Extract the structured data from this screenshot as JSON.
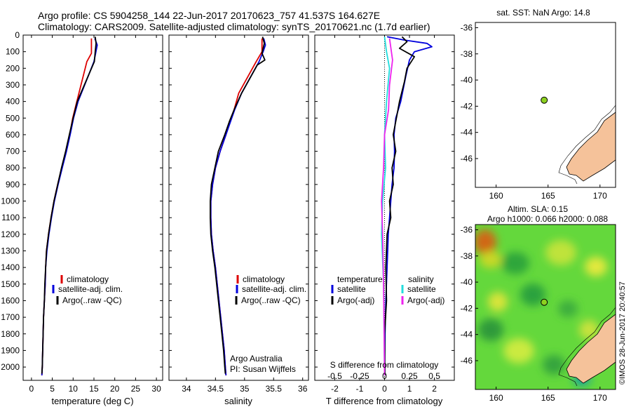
{
  "header": {
    "line1": "Argo profile: CS 5904258_144 22-Jun-2017 20170623_757 41.537S 164.627E",
    "line2": "Climatology: CARS2009. Satellite-adjusted climatology: synTS_20170621.nc (1.7d earlier)"
  },
  "credits": {
    "line1": "Argo Australia",
    "line2": "PI: Susan Wijffels",
    "watermark": "©IMOS 28-Jun-2017 20:40:57"
  },
  "colors": {
    "climatology": "#dd0000",
    "satellite": "#0000dd",
    "argo": "#000000",
    "sal_satellite": "#22dddd",
    "sal_argo": "#ee22ee",
    "land": "#f5c29a",
    "marker": "#8cd020"
  },
  "legends": {
    "temp": [
      "climatology",
      "satellite-adj. clim.",
      "Argo(..raw -QC)"
    ],
    "sal": [
      "climatology",
      "satellite-adj. clim.",
      "Argo(..raw -QC)"
    ],
    "diff_head_t": "temperature",
    "diff_head_s": "salinity",
    "diff_t": [
      "satellite",
      "Argo(-adj)"
    ],
    "diff_s": [
      "satellite",
      "Argo(-adj)"
    ]
  },
  "chart_data": [
    {
      "type": "line",
      "id": "temperature",
      "xlabel": "temperature (deg C)",
      "ylabel": "",
      "xlim": [
        -2,
        31.5
      ],
      "ylim": [
        2080,
        0
      ],
      "xticks": [
        0,
        5,
        10,
        15,
        20,
        25,
        30
      ],
      "yticks": [
        0,
        100,
        200,
        300,
        400,
        500,
        600,
        700,
        800,
        900,
        1000,
        1100,
        1200,
        1300,
        1400,
        1500,
        1600,
        1700,
        1800,
        1900,
        2000
      ],
      "series": [
        {
          "name": "climatology",
          "color": "climatology",
          "points": [
            [
              14.4,
              20
            ],
            [
              14.4,
              110
            ],
            [
              13.3,
              160
            ],
            [
              10.9,
              400
            ],
            [
              9.9,
              500
            ],
            [
              9.2,
              600
            ],
            [
              8.3,
              700
            ],
            [
              7.3,
              800
            ],
            [
              6.3,
              900
            ],
            [
              5.4,
              1000
            ],
            [
              4.7,
              1100
            ],
            [
              4.1,
              1200
            ],
            [
              3.6,
              1300
            ],
            [
              3.4,
              1400
            ],
            [
              3.3,
              1500
            ],
            [
              3.1,
              1600
            ],
            [
              2.9,
              1700
            ],
            [
              2.8,
              1800
            ],
            [
              2.7,
              1900
            ],
            [
              2.6,
              2000
            ],
            [
              2.5,
              2050
            ]
          ]
        },
        {
          "name": "satellite-adj. clim.",
          "color": "satellite",
          "points": [
            [
              15.2,
              20
            ],
            [
              15.8,
              60
            ],
            [
              15.4,
              110
            ],
            [
              15.0,
              160
            ],
            [
              11.2,
              400
            ],
            [
              10.1,
              500
            ],
            [
              9.3,
              600
            ],
            [
              8.4,
              700
            ],
            [
              7.4,
              800
            ],
            [
              6.4,
              900
            ],
            [
              5.5,
              1000
            ],
            [
              4.8,
              1100
            ],
            [
              4.2,
              1200
            ],
            [
              3.7,
              1300
            ],
            [
              3.4,
              1400
            ],
            [
              3.3,
              1500
            ],
            [
              3.1,
              1600
            ],
            [
              2.9,
              1700
            ],
            [
              2.8,
              1800
            ],
            [
              2.7,
              1900
            ],
            [
              2.6,
              2000
            ],
            [
              2.5,
              2050
            ]
          ]
        },
        {
          "name": "Argo(..raw -QC)",
          "color": "argo",
          "points": [
            [
              15.3,
              10
            ],
            [
              15.5,
              50
            ],
            [
              15.3,
              100
            ],
            [
              15.1,
              160
            ],
            [
              11.0,
              400
            ],
            [
              10.0,
              500
            ],
            [
              9.1,
              600
            ],
            [
              8.2,
              700
            ],
            [
              7.2,
              800
            ],
            [
              6.3,
              900
            ],
            [
              5.4,
              1000
            ],
            [
              4.7,
              1100
            ],
            [
              4.1,
              1200
            ],
            [
              3.6,
              1300
            ],
            [
              3.4,
              1400
            ],
            [
              3.2,
              1500
            ],
            [
              3.1,
              1600
            ],
            [
              2.9,
              1700
            ],
            [
              2.8,
              1800
            ],
            [
              2.7,
              1900
            ],
            [
              2.6,
              2000
            ],
            [
              2.5,
              2040
            ]
          ]
        }
      ]
    },
    {
      "type": "line",
      "id": "salinity",
      "xlabel": "salinity",
      "ylabel": "",
      "xlim": [
        33.7,
        36.1
      ],
      "ylim": [
        2080,
        0
      ],
      "xticks": [
        34,
        34.5,
        35,
        35.5,
        36
      ],
      "series": [
        {
          "name": "climatology",
          "color": "climatology",
          "points": [
            [
              35.3,
              20
            ],
            [
              35.3,
              100
            ],
            [
              35.2,
              160
            ],
            [
              34.9,
              350
            ],
            [
              34.82,
              450
            ],
            [
              34.75,
              520
            ],
            [
              34.68,
              600
            ],
            [
              34.58,
              700
            ],
            [
              34.5,
              800
            ],
            [
              34.45,
              900
            ],
            [
              34.42,
              1000
            ],
            [
              34.42,
              1100
            ],
            [
              34.43,
              1200
            ],
            [
              34.46,
              1300
            ],
            [
              34.5,
              1400
            ],
            [
              34.53,
              1500
            ],
            [
              34.56,
              1600
            ],
            [
              34.59,
              1700
            ],
            [
              34.62,
              1800
            ],
            [
              34.65,
              1900
            ],
            [
              34.67,
              2000
            ],
            [
              34.68,
              2050
            ]
          ]
        },
        {
          "name": "satellite-adj. clim.",
          "color": "satellite",
          "points": [
            [
              35.33,
              20
            ],
            [
              35.36,
              60
            ],
            [
              35.32,
              100
            ],
            [
              35.25,
              160
            ],
            [
              34.95,
              350
            ],
            [
              34.83,
              450
            ],
            [
              34.76,
              520
            ],
            [
              34.68,
              600
            ],
            [
              34.58,
              700
            ],
            [
              34.5,
              800
            ],
            [
              34.45,
              900
            ],
            [
              34.42,
              1000
            ],
            [
              34.42,
              1100
            ],
            [
              34.43,
              1200
            ],
            [
              34.46,
              1300
            ],
            [
              34.5,
              1400
            ],
            [
              34.53,
              1500
            ],
            [
              34.56,
              1600
            ],
            [
              34.59,
              1700
            ],
            [
              34.62,
              1800
            ],
            [
              34.65,
              1900
            ],
            [
              34.67,
              2000
            ],
            [
              34.68,
              2050
            ]
          ]
        },
        {
          "name": "Argo(..raw -QC)",
          "color": "argo",
          "points": [
            [
              35.31,
              10
            ],
            [
              35.34,
              50
            ],
            [
              35.3,
              110
            ],
            [
              35.35,
              150
            ],
            [
              35.22,
              180
            ],
            [
              34.95,
              350
            ],
            [
              34.82,
              450
            ],
            [
              34.74,
              520
            ],
            [
              34.66,
              600
            ],
            [
              34.55,
              700
            ],
            [
              34.49,
              800
            ],
            [
              34.43,
              900
            ],
            [
              34.41,
              1000
            ],
            [
              34.41,
              1100
            ],
            [
              34.42,
              1200
            ],
            [
              34.45,
              1300
            ],
            [
              34.49,
              1400
            ],
            [
              34.52,
              1500
            ],
            [
              34.55,
              1600
            ],
            [
              34.58,
              1700
            ],
            [
              34.61,
              1800
            ],
            [
              34.64,
              1900
            ],
            [
              34.66,
              2000
            ],
            [
              34.67,
              2040
            ]
          ]
        }
      ]
    },
    {
      "type": "line",
      "id": "difference",
      "xlabel": "T difference from climatology",
      "x2label": "S difference from climatology",
      "xlim": [
        -2.8,
        2.8
      ],
      "ylim": [
        2080,
        0
      ],
      "xticks": [
        -2,
        -1,
        0,
        1,
        2
      ],
      "s_ticks": [
        -0.5,
        -0.25,
        0,
        0.25,
        0.5
      ],
      "s_ticks_text": [
        "-0.5",
        "-0.25",
        "0",
        "0.25",
        "0.5"
      ],
      "series": [
        {
          "name": "T satellite",
          "color": "satellite",
          "points": [
            [
              0.1,
              10
            ],
            [
              0.8,
              30
            ],
            [
              1.7,
              50
            ],
            [
              1.9,
              70
            ],
            [
              1.2,
              100
            ],
            [
              1.0,
              150
            ],
            [
              0.85,
              250
            ],
            [
              0.65,
              400
            ],
            [
              0.45,
              500
            ],
            [
              0.38,
              600
            ],
            [
              0.4,
              700
            ],
            [
              0.38,
              800
            ],
            [
              0.3,
              900
            ],
            [
              0.25,
              1000
            ],
            [
              0.2,
              1100
            ],
            [
              0.15,
              1200
            ],
            [
              0.1,
              1400
            ],
            [
              0.05,
              1600
            ],
            [
              0.02,
              1800
            ],
            [
              0,
              2050
            ]
          ]
        },
        {
          "name": "T Argo(-adj)",
          "color": "argo",
          "points": [
            [
              0.7,
              10
            ],
            [
              0.9,
              40
            ],
            [
              0.6,
              80
            ],
            [
              1.2,
              130
            ],
            [
              0.9,
              200
            ],
            [
              0.8,
              280
            ],
            [
              0.6,
              400
            ],
            [
              0.5,
              480
            ],
            [
              0.35,
              600
            ],
            [
              0.45,
              700
            ],
            [
              0.3,
              800
            ],
            [
              0.35,
              900
            ],
            [
              0.2,
              1000
            ],
            [
              0.25,
              1100
            ],
            [
              0.1,
              1200
            ],
            [
              0.05,
              1400
            ],
            [
              0.08,
              1600
            ],
            [
              0.0,
              1800
            ],
            [
              0.02,
              2050
            ]
          ]
        },
        {
          "name": "S satellite",
          "color": "sal_satellite",
          "points": [
            [
              0.0,
              10
            ],
            [
              0.02,
              100
            ],
            [
              0.05,
              200
            ],
            [
              0.02,
              400
            ],
            [
              0.0,
              600
            ],
            [
              0.01,
              800
            ],
            [
              -0.02,
              1000
            ],
            [
              -0.03,
              1200
            ],
            [
              -0.01,
              1500
            ],
            [
              0.0,
              2050
            ]
          ]
        },
        {
          "name": "S Argo(-adj)",
          "color": "sal_argo",
          "points": [
            [
              0.05,
              20
            ],
            [
              0.08,
              150
            ],
            [
              0.05,
              300
            ],
            [
              0.04,
              450
            ],
            [
              0.0,
              600
            ],
            [
              -0.01,
              800
            ],
            [
              -0.03,
              1000
            ],
            [
              -0.02,
              1200
            ],
            [
              -0.01,
              1500
            ],
            [
              0.0,
              2050
            ]
          ]
        }
      ]
    },
    {
      "type": "map",
      "id": "sst",
      "title": "sat. SST: NaN  Argo: 14.8",
      "xlim": [
        158,
        171.5
      ],
      "ylim": [
        -48.2,
        -35.6
      ],
      "xticks": [
        160,
        165,
        170
      ],
      "yticks": [
        -36,
        -38,
        -40,
        -42,
        -44,
        -46
      ],
      "point": [
        164.627,
        -41.537
      ]
    },
    {
      "type": "heatmap",
      "id": "sla",
      "title1": "Altim. SLA: 0.15",
      "title2": "Argo h1000: 0.066 h2000: 0.088",
      "xlim": [
        158,
        171.5
      ],
      "ylim": [
        -48.2,
        -35.6
      ],
      "xticks": [
        160,
        165,
        170
      ],
      "yticks": [
        -36,
        -38,
        -40,
        -42,
        -44,
        -46
      ],
      "point": [
        164.627,
        -41.537
      ]
    }
  ]
}
